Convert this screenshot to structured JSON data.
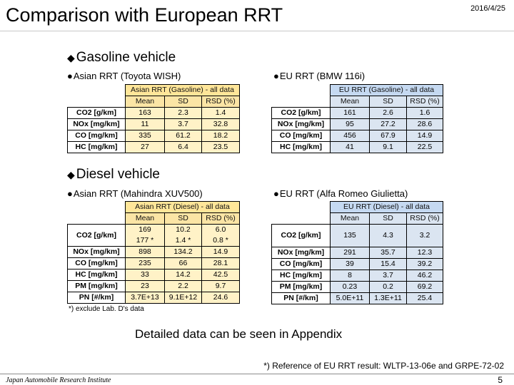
{
  "header": {
    "title": "Comparison with European RRT",
    "date": "2016/4/25"
  },
  "gasoline": {
    "heading": "Gasoline vehicle",
    "asian": {
      "caption": "Asian RRT (Toyota WISH)",
      "table_title": "Asian RRT (Gasoline) - all data",
      "columns": [
        "Mean",
        "SD",
        "RSD (%)"
      ],
      "rows": [
        {
          "label": "CO2 [g/km]",
          "mean": "163",
          "sd": "2.3",
          "rsd": "1.4"
        },
        {
          "label": "NOx [mg/km]",
          "mean": "11",
          "sd": "3.7",
          "rsd": "32.8"
        },
        {
          "label": "CO [mg/km]",
          "mean": "335",
          "sd": "61.2",
          "rsd": "18.2"
        },
        {
          "label": "HC [mg/km]",
          "mean": "27",
          "sd": "6.4",
          "rsd": "23.5"
        }
      ]
    },
    "eu": {
      "caption": "EU RRT (BMW 116i)",
      "table_title": "EU RRT (Gasoline) - all data",
      "columns": [
        "Mean",
        "SD",
        "RSD (%)"
      ],
      "rows": [
        {
          "label": "CO2 [g/km]",
          "mean": "161",
          "sd": "2.6",
          "rsd": "1.6"
        },
        {
          "label": "NOx [mg/km]",
          "mean": "95",
          "sd": "27.2",
          "rsd": "28.6"
        },
        {
          "label": "CO [mg/km]",
          "mean": "456",
          "sd": "67.9",
          "rsd": "14.9"
        },
        {
          "label": "HC [mg/km]",
          "mean": "41",
          "sd": "9.1",
          "rsd": "22.5"
        }
      ]
    }
  },
  "diesel": {
    "heading": "Diesel vehicle",
    "asian": {
      "caption": "Asian RRT (Mahindra XUV500)",
      "table_title": "Asian RRT (Diesel) - all data",
      "columns": [
        "Mean",
        "SD",
        "RSD (%)"
      ],
      "co2": {
        "label": "CO2 [g/km]",
        "mean": "169",
        "sd": "10.2",
        "rsd": "6.0",
        "mean2": "177 *",
        "sd2": "1.4 *",
        "rsd2": "0.8 *"
      },
      "rows": [
        {
          "label": "NOx [mg/km]",
          "mean": "898",
          "sd": "134.2",
          "rsd": "14.9"
        },
        {
          "label": "CO [mg/km]",
          "mean": "235",
          "sd": "66",
          "rsd": "28.1"
        },
        {
          "label": "HC [mg/km]",
          "mean": "33",
          "sd": "14.2",
          "rsd": "42.5"
        },
        {
          "label": "PM [mg/km]",
          "mean": "23",
          "sd": "2.2",
          "rsd": "9.7"
        },
        {
          "label": "PN [#/km]",
          "mean": "3.7E+13",
          "sd": "9.1E+12",
          "rsd": "24.6"
        }
      ],
      "footnote": "*) exclude Lab. D's data"
    },
    "eu": {
      "caption": "EU RRT (Alfa Romeo Giulietta)",
      "table_title": "EU RRT (Diesel) - all data",
      "columns": [
        "Mean",
        "SD",
        "RSD (%)"
      ],
      "co2": {
        "label": "CO2 [g/km]",
        "mean": "135",
        "sd": "4.3",
        "rsd": "3.2"
      },
      "rows": [
        {
          "label": "NOx [mg/km]",
          "mean": "291",
          "sd": "35.7",
          "rsd": "12.3"
        },
        {
          "label": "CO [mg/km]",
          "mean": "39",
          "sd": "15.4",
          "rsd": "39.2"
        },
        {
          "label": "HC [mg/km]",
          "mean": "8",
          "sd": "3.7",
          "rsd": "46.2"
        },
        {
          "label": "PM [mg/km]",
          "mean": "0.23",
          "sd": "0.2",
          "rsd": "69.2"
        },
        {
          "label": "PN [#/km]",
          "mean": "5.0E+11",
          "sd": "1.3E+11",
          "rsd": "25.4"
        }
      ]
    }
  },
  "appendix_note": "Detailed data can be seen in Appendix",
  "reference": "*) Reference of EU RRT result: WLTP-13-06e and GRPE-72-02",
  "footer": {
    "organization": "Japan Automobile Research Institute",
    "page": "5"
  }
}
